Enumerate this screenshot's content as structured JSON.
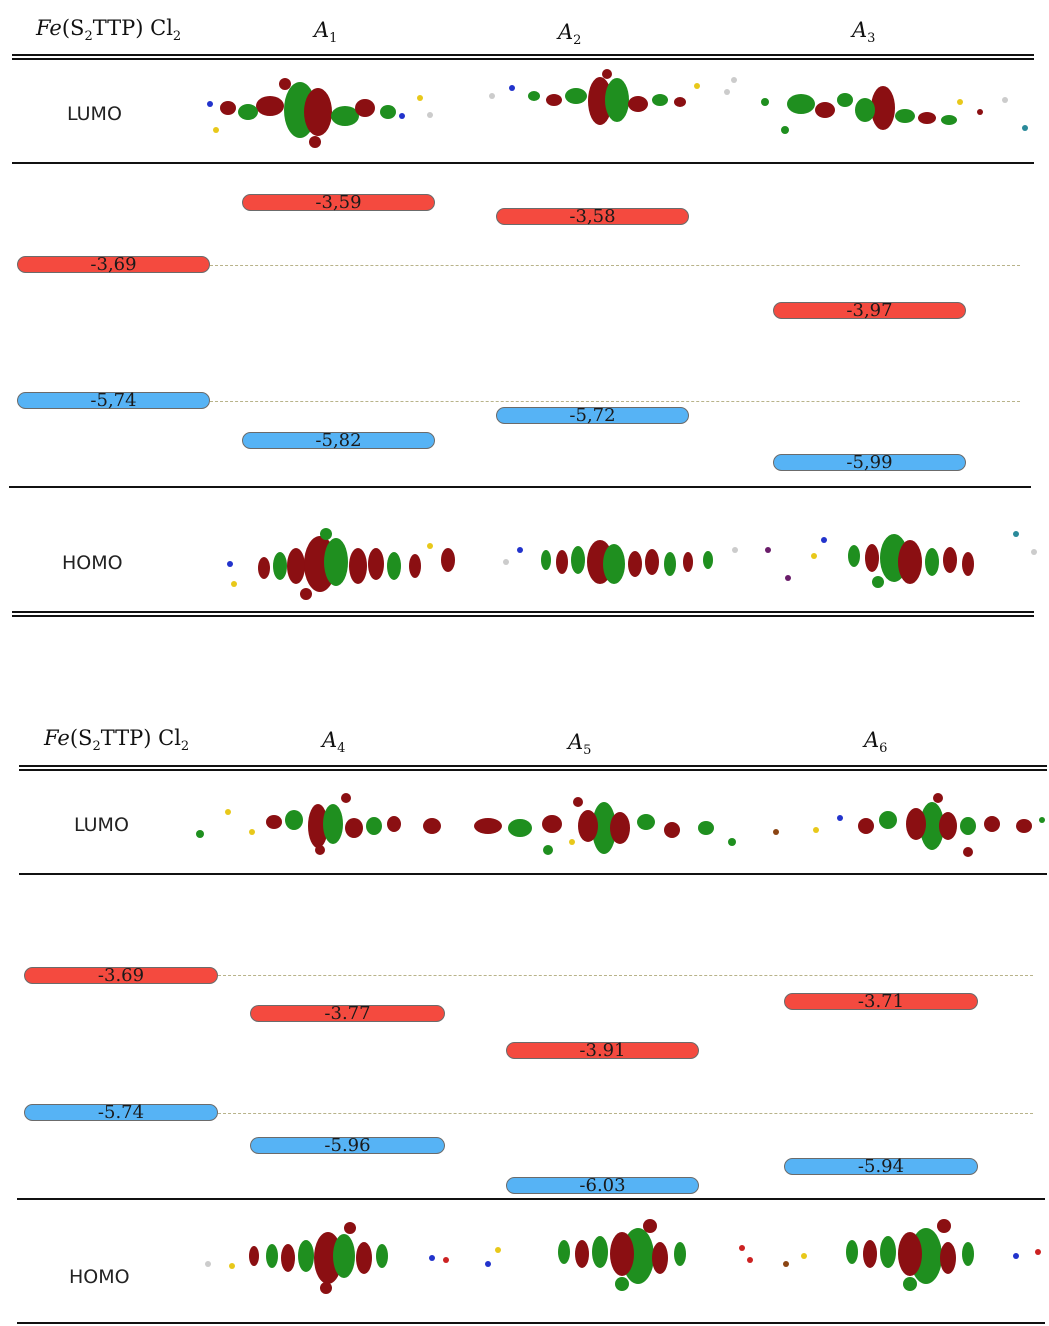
{
  "panels": [
    {
      "reference_symbol": "Fe",
      "reference_formula": "(S",
      "reference_sub1": "2",
      "reference_formula2": "TTP) Cl",
      "reference_sub2": "2",
      "columns": [
        {
          "symbol": "A",
          "sub": "1"
        },
        {
          "symbol": "A",
          "sub": "2"
        },
        {
          "symbol": "A",
          "sub": "3"
        }
      ],
      "lumo_label": "LUMO",
      "homo_label": "HOMO",
      "reference_lumo": "-3,69",
      "reference_homo": "-5,74",
      "lumo_values": [
        "-3,59",
        "-3,58",
        "-3,97"
      ],
      "homo_values": [
        "-5,82",
        "-5,72",
        "-5,99"
      ]
    },
    {
      "reference_symbol": "Fe",
      "reference_formula": "(S",
      "reference_sub1": "2",
      "reference_formula2": "TTP) Cl",
      "reference_sub2": "2",
      "columns": [
        {
          "symbol": "A",
          "sub": "4"
        },
        {
          "symbol": "A",
          "sub": "5"
        },
        {
          "symbol": "A",
          "sub": "6"
        }
      ],
      "lumo_label": "LUMO",
      "homo_label": "HOMO",
      "reference_lumo": "-3.69",
      "reference_homo": "-5.74",
      "lumo_values": [
        "-3.77",
        "-3.91",
        "-3.71"
      ],
      "homo_values": [
        "-5.96",
        "-6.03",
        "-5.94"
      ]
    }
  ],
  "colors": {
    "lumo_bar": "#f44a3f",
    "homo_bar": "#56b3f5",
    "orbital_dark_red": "#8b0f12",
    "orbital_green": "#1f8f1f"
  }
}
